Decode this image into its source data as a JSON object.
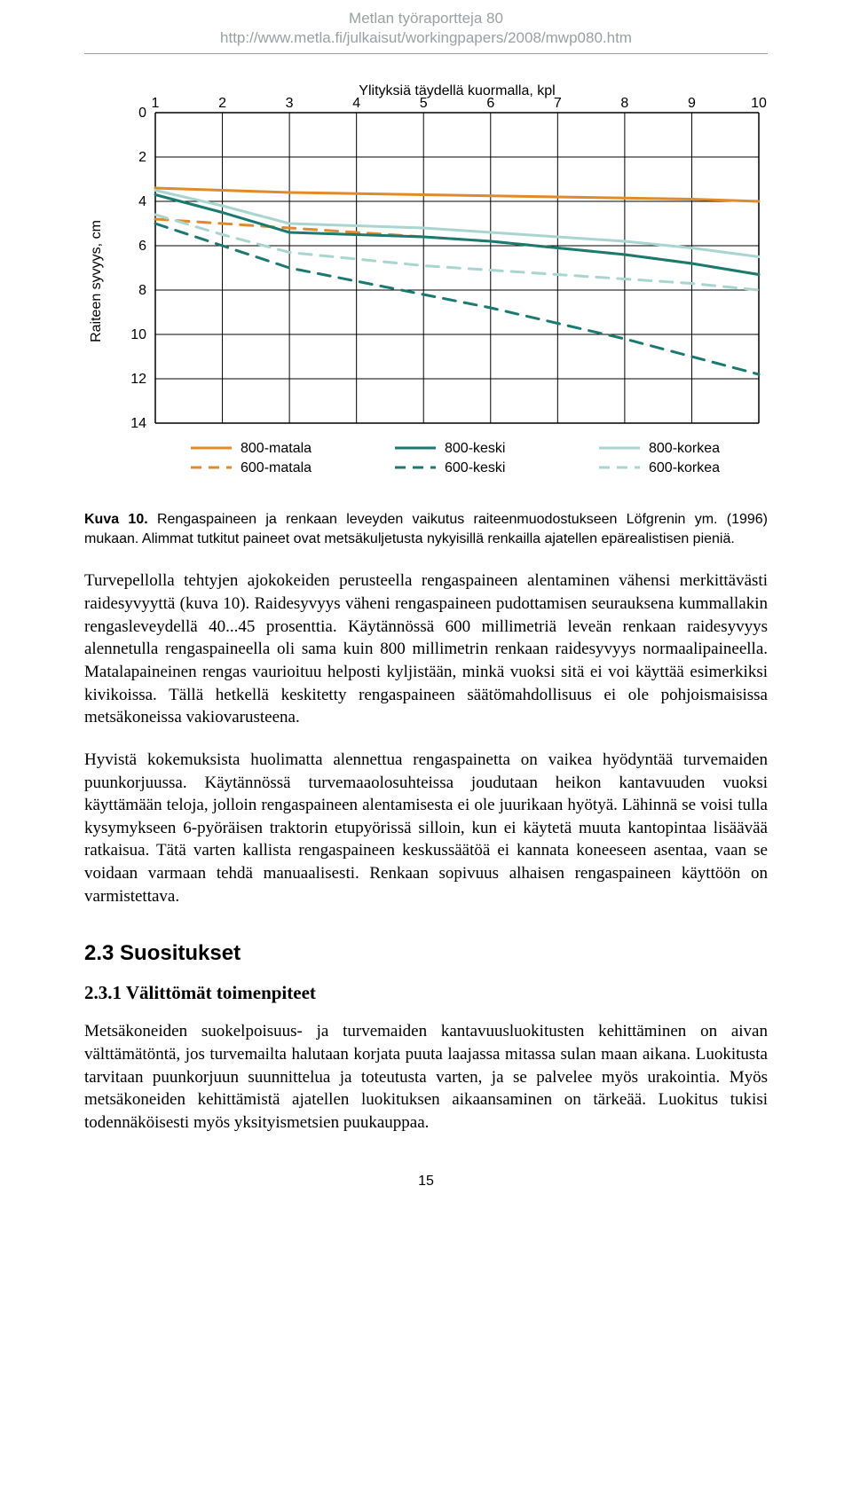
{
  "header": {
    "line1": "Metlan työraportteja 80",
    "line2": "http://www.metla.fi/julkaisut/workingpapers/2008/mwp080.htm"
  },
  "chart": {
    "type": "line",
    "title": "Ylityksiä täydellä kuormalla, kpl",
    "xlabel": "",
    "ylabel": "Raiteen syvyys, cm",
    "x_ticks": [
      1,
      2,
      3,
      4,
      5,
      6,
      7,
      8,
      9,
      10
    ],
    "y_ticks": [
      0,
      2,
      4,
      6,
      8,
      10,
      12,
      14
    ],
    "xlim": [
      1,
      10
    ],
    "ylim": [
      0,
      14
    ],
    "title_fontsize": 16,
    "tick_fontsize": 16,
    "ylabel_fontsize": 16,
    "background_color": "#ffffff",
    "grid_color": "#000000",
    "axis_linewidth": 1,
    "line_width": 3,
    "series": [
      {
        "name": "800-matala",
        "color": "#e08a2a",
        "dash": "solid",
        "y": [
          3.4,
          3.5,
          3.6,
          3.65,
          3.7,
          3.75,
          3.8,
          3.85,
          3.9,
          4.0
        ]
      },
      {
        "name": "600-matala",
        "color": "#e08a2a",
        "dash": "dashed",
        "y": [
          4.8,
          5.0,
          5.2,
          5.4,
          5.6,
          5.8,
          6.1,
          6.4,
          6.8,
          7.3
        ]
      },
      {
        "name": "800-keski",
        "color": "#1a7a6f",
        "dash": "solid",
        "y": [
          3.7,
          4.5,
          5.4,
          5.5,
          5.6,
          5.8,
          6.1,
          6.4,
          6.8,
          7.3
        ]
      },
      {
        "name": "600-keski",
        "color": "#1a7a6f",
        "dash": "dashed",
        "y": [
          5.0,
          6.0,
          7.0,
          7.6,
          8.2,
          8.8,
          9.5,
          10.2,
          11.0,
          11.8
        ]
      },
      {
        "name": "800-korkea",
        "color": "#a9d5d0",
        "dash": "solid",
        "y": [
          3.5,
          4.2,
          5.0,
          5.1,
          5.2,
          5.4,
          5.6,
          5.8,
          6.1,
          6.5
        ]
      },
      {
        "name": "600-korkea",
        "color": "#a9d5d0",
        "dash": "dashed",
        "y": [
          4.6,
          5.5,
          6.3,
          6.6,
          6.9,
          7.1,
          7.3,
          7.5,
          7.7,
          8.0
        ]
      }
    ],
    "legend": {
      "entries": [
        "800-matala",
        "600-matala",
        "800-keski",
        "600-keski",
        "800-korkea",
        "600-korkea"
      ],
      "fontsize": 16
    }
  },
  "caption": {
    "label": "Kuva 10.",
    "text": "Rengaspaineen ja renkaan leveyden vaikutus raiteenmuodostukseen Löfgrenin ym. (1996) mukaan. Alimmat tutkitut paineet ovat metsäkuljetusta nykyisillä renkailla ajatellen epärealistisen pieniä."
  },
  "paragraphs": {
    "p1": "Turvepellolla tehtyjen ajokokeiden perusteella rengaspaineen alentaminen vähensi merkittävästi raidesyvyyttä (kuva 10). Raidesyvyys väheni rengaspaineen pudottamisen seurauksena kummallakin rengasleveydellä 40...45 prosenttia. Käytännössä 600 millimetriä leveän renkaan raidesyvyys alennetulla rengaspaineella oli sama kuin 800 millimetrin renkaan raidesyvyys normaalipaineella. Matalapaineinen rengas vaurioituu helposti kyljistään, minkä vuoksi sitä ei voi käyttää esimerkiksi kivikoissa. Tällä hetkellä keskitetty rengaspaineen säätömahdollisuus ei ole pohjoismaisissa metsäkoneissa vakiovarusteena.",
    "p2": "Hyvistä kokemuksista huolimatta alennettua rengaspainetta on vaikea hyödyntää turvemaiden puunkorjuussa. Käytännössä turvemaaolosuhteissa joudutaan heikon kantavuuden vuoksi käyttämään teloja, jolloin rengaspaineen alentamisesta ei ole juurikaan hyötyä. Lähinnä se voisi tulla kysymykseen 6-pyöräisen traktorin etupyörissä silloin, kun ei käytetä muuta kantopintaa lisäävää ratkaisua. Tätä varten kallista rengaspaineen keskussäätöä ei kannata koneeseen asentaa, vaan se voidaan varmaan tehdä manuaalisesti. Renkaan sopivuus alhaisen rengaspaineen käyttöön on varmistettava.",
    "p3": "Metsäkoneiden suokelpoisuus- ja turvemaiden kantavuusluokitusten kehittäminen on aivan välttämätöntä, jos turvemailta halutaan korjata puuta laajassa mitassa sulan maan aikana. Luokitusta tarvitaan puunkorjuun suunnittelua ja toteutusta varten, ja se palvelee myös urakointia. Myös metsäkoneiden kehittämistä ajatellen luokituksen aikaansaminen on tärkeää. Luokitus tukisi todennäköisesti myös yksityismetsien puukauppaa."
  },
  "headings": {
    "h2": "2.3 Suositukset",
    "h3": "2.3.1 Välittömät toimenpiteet"
  },
  "page_number": "15"
}
